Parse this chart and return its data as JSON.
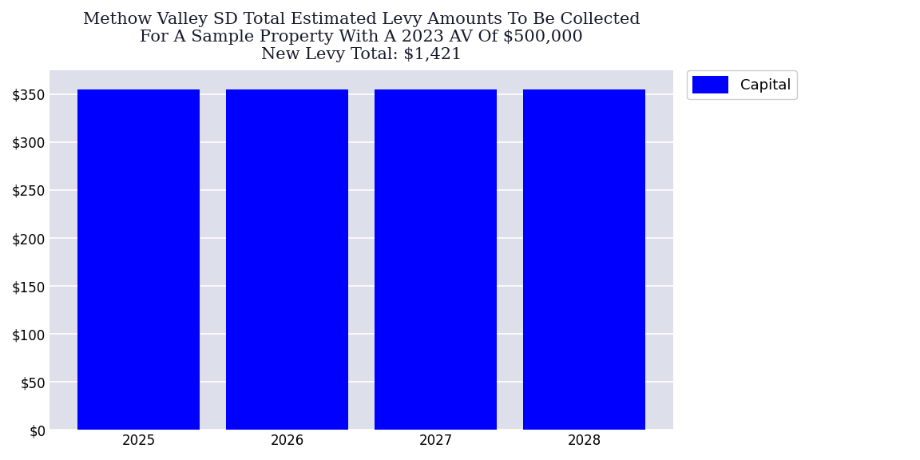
{
  "title_line1": "Methow Valley SD Total Estimated Levy Amounts To Be Collected",
  "title_line2": "For A Sample Property With A 2023 AV Of $500,000",
  "title_line3": "New Levy Total: $1,421",
  "years": [
    2025,
    2026,
    2027,
    2028
  ],
  "capital_values": [
    355.25,
    355.25,
    355.25,
    355.25
  ],
  "bar_color": "#0000ff",
  "legend_label": "Capital",
  "ylim": [
    0,
    375
  ],
  "yticks": [
    0,
    50,
    100,
    150,
    200,
    250,
    300,
    350
  ],
  "plot_bg_color": "#dde0ea",
  "figure_bg_color": "#ffffff",
  "title_fontsize": 15,
  "tick_fontsize": 12,
  "legend_fontsize": 13,
  "bar_width": 0.82,
  "title_color": "#1a1a2e"
}
